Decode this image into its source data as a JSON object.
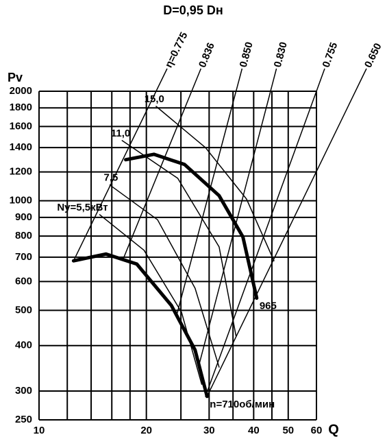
{
  "chart_data": {
    "type": "line",
    "title": "D=0,95 Dн",
    "y_label": "Pv",
    "x_label": "Q",
    "xlog": true,
    "ylog": true,
    "grid": true,
    "xlim": [
      10,
      60
    ],
    "xticks": [
      10,
      20,
      30,
      40,
      50,
      60
    ],
    "xminor": [
      12,
      14,
      16,
      18,
      25,
      35,
      45
    ],
    "ylim": [
      250,
      2000
    ],
    "yticks": [
      250,
      300,
      400,
      500,
      600,
      700,
      800,
      900,
      1000,
      1200,
      1400,
      1600,
      1800,
      2000
    ],
    "series": [
      {
        "name": "965",
        "color": "#000000",
        "x": [
          17.5,
          21.0,
          25.6,
          32.0,
          37.3,
          40.8
        ],
        "y": [
          1297,
          1342,
          1258,
          1033,
          796,
          540
        ]
      },
      {
        "name": "n=710об/мин",
        "color": "#000000",
        "x": [
          12.5,
          15.4,
          18.8,
          23.5,
          27.4,
          29.6
        ],
        "y": [
          684,
          714,
          670,
          516,
          389,
          290
        ]
      }
    ],
    "power_lines": [
      {
        "name": "15,0",
        "color": "#000000",
        "x": [
          21.3,
          29.3,
          38.2,
          45.6
        ],
        "y": [
          1818,
          1400,
          1011,
          684
        ]
      },
      {
        "name": "11,0",
        "color": "#000000",
        "x": [
          17.1,
          24.5,
          32.0,
          35.7
        ],
        "y": [
          1464,
          1153,
          747,
          425
        ]
      },
      {
        "name": "7,5",
        "color": "#000000",
        "x": [
          15.8,
          21.5,
          27.4,
          32.0
        ],
        "y": [
          1105,
          887,
          575,
          349
        ]
      },
      {
        "name": "Ny=5,5кВт",
        "color": "#000000",
        "x": [
          14.8,
          19.7,
          25.1,
          28.6
        ],
        "y": [
          916,
          731,
          494,
          313
        ]
      }
    ],
    "efficiency_lines": [
      {
        "name": "η=0.775",
        "color": "#000000",
        "x": [
          12.5,
          21.3
        ],
        "y": [
          684,
          2000
        ]
      },
      {
        "name": "0.836",
        "color": "#000000",
        "x": [
          17.2,
          26.8
        ],
        "y": [
          690,
          2000
        ]
      },
      {
        "name": "0.850",
        "color": "#000000",
        "x": [
          24.3,
          35.7
        ],
        "y": [
          483,
          2000
        ]
      },
      {
        "name": "0.830",
        "color": "#000000",
        "x": [
          28.0,
          44.6
        ],
        "y": [
          349,
          2000
        ]
      },
      {
        "name": "0.755",
        "color": "#000000",
        "x": [
          29.3,
          60
        ],
        "y": [
          290,
          2000
        ]
      },
      {
        "name": "0.650",
        "color": "#000000",
        "x": [
          29.6,
          60
        ],
        "y": [
          290,
          1204
        ]
      }
    ]
  }
}
